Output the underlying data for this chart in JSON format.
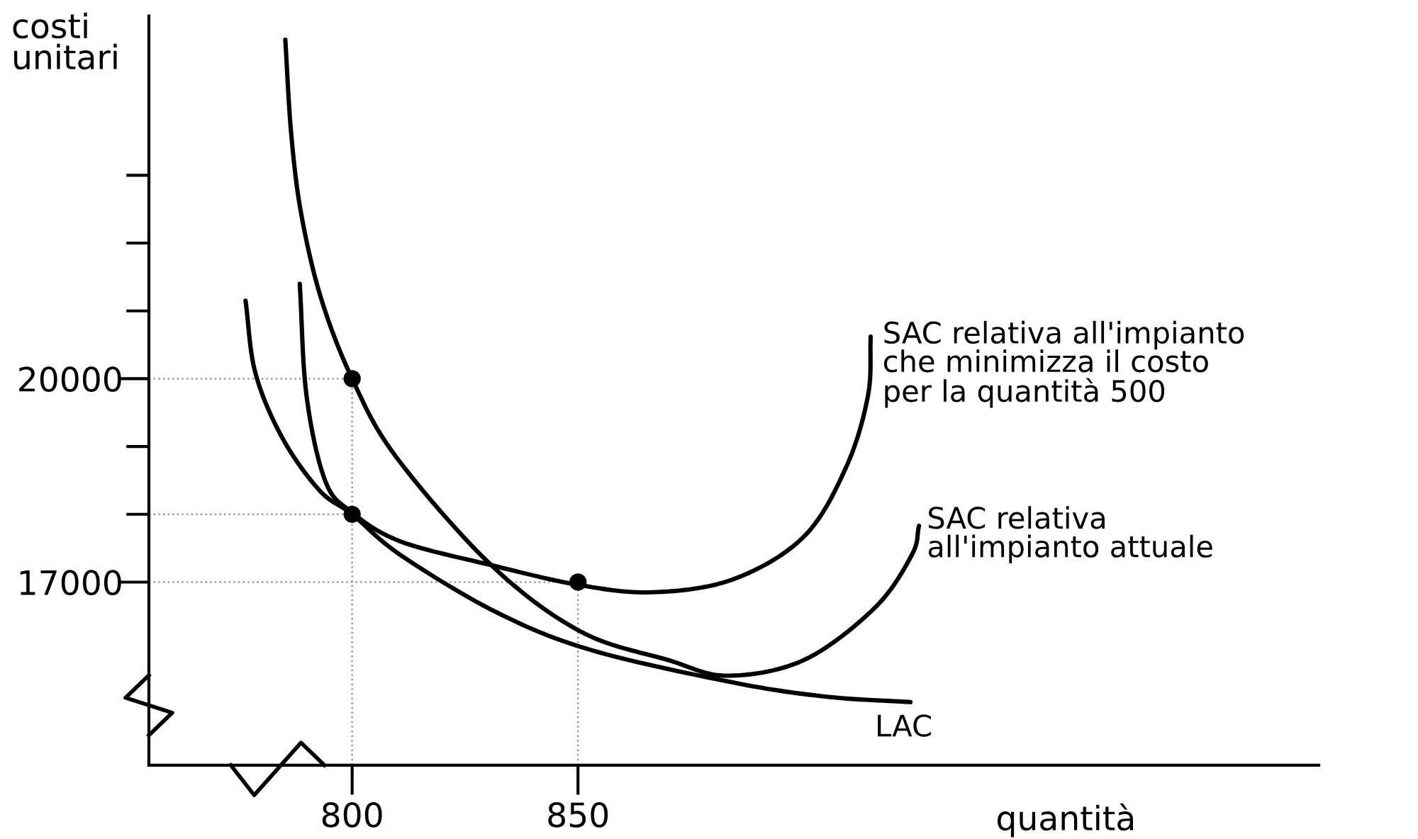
{
  "chart_data": {
    "type": "line",
    "xlabel": "quantità",
    "ylabel": "costi\nunitari",
    "xlim": [
      755,
      1014
    ],
    "ylim": [
      14300,
      25350
    ],
    "xticks": [
      800,
      850
    ],
    "yticks": [
      17000,
      {
        "value": 18000,
        "label": null
      },
      {
        "value": 19000,
        "label": null
      },
      20000,
      {
        "value": 21000,
        "label": null
      },
      {
        "value": 22000,
        "label": null
      },
      {
        "value": 23000,
        "label": null
      }
    ],
    "grid": false,
    "line_style": "solid",
    "series": [
      {
        "name": "SAC relativa all'impianto\nche minimizza il costo\nper la quantità 500",
        "color": "#000000",
        "marker": "none",
        "x": [
          788.4,
          789.9,
          794.0,
          799.7,
          810.7,
          830.8,
          850,
          866.4,
          884.3,
          900,
          909.4,
          914.2,
          914.8
        ],
        "values": [
          21400,
          19750,
          18500,
          18040,
          17600,
          17250,
          16960,
          16850,
          17040,
          17670,
          18700,
          19750,
          20620
        ]
      },
      {
        "name": "SAC relativa\nall'impianto attuale",
        "color": "#000000",
        "marker": "none",
        "x": [
          785.2,
          786.5,
          788.7,
          793.1,
          800,
          809.7,
          830.8,
          850.6,
          870,
          883,
          900,
          915.7,
          923.9,
          925.5
        ],
        "values": [
          25000,
          23620,
          22440,
          21190,
          20000,
          18850,
          17250,
          16270,
          15850,
          15620,
          15850,
          16620,
          17400,
          17830
        ]
      },
      {
        "name": "LAC",
        "color": "#000000",
        "marker": "none",
        "x": [
          776.4,
          778.6,
          784.6,
          792.8,
          800,
          810.7,
          831.8,
          852.8,
          884.3,
          905,
          923.6
        ],
        "values": [
          21150,
          20080,
          19120,
          18350,
          18000,
          17400,
          16560,
          16000,
          15520,
          15310,
          15230
        ]
      },
      {
        "type": "scatter",
        "color": "#000000",
        "marker": "circle",
        "x": [
          800,
          800,
          850
        ],
        "values": [
          20000,
          18000,
          17000
        ]
      }
    ],
    "ref_lines": [
      {
        "axis": "y",
        "value": 20000,
        "color": "#999999",
        "line_style": "dotted"
      },
      {
        "axis": "y",
        "value": 18000,
        "color": "#999999",
        "line_style": "dotted"
      },
      {
        "axis": "y",
        "value": 17000,
        "color": "#999999",
        "line_style": "dotted"
      },
      {
        "axis": "x",
        "value": 800,
        "color": "#999999",
        "line_style": "dotted"
      },
      {
        "axis": "x",
        "value": 850,
        "color": "#999999",
        "line_style": "dotted"
      }
    ]
  }
}
